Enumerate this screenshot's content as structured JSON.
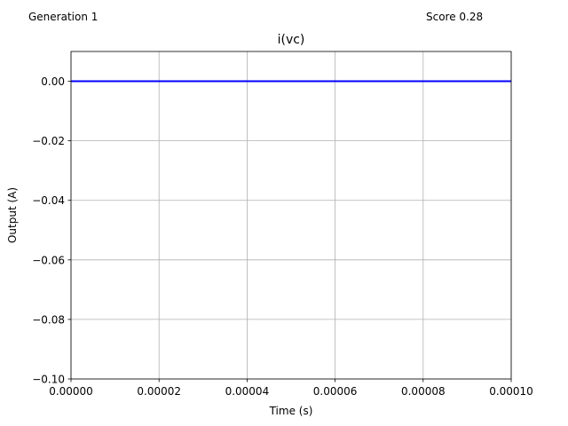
{
  "header": {
    "generation": "Generation 1",
    "score": "Score 0.28"
  },
  "chart_data": {
    "type": "line",
    "title": "i(vc)",
    "xlabel": "Time (s)",
    "ylabel": "Output (A)",
    "xlim": [
      0,
      0.0001
    ],
    "ylim": [
      -0.1,
      0.01
    ],
    "x_ticks": [
      0,
      2e-05,
      4e-05,
      6e-05,
      8e-05,
      0.0001
    ],
    "x_tick_labels": [
      "0.00000",
      "0.00002",
      "0.00004",
      "0.00006",
      "0.00008",
      "0.00010"
    ],
    "y_ticks": [
      0,
      -0.02,
      -0.04,
      -0.06,
      -0.08,
      -0.1
    ],
    "y_tick_labels": [
      "0.00",
      "−0.02",
      "−0.04",
      "−0.06",
      "−0.08",
      "−0.10"
    ],
    "grid": true,
    "series": [
      {
        "color": "#0000ff",
        "x": [
          0,
          0.0001
        ],
        "y": [
          0,
          0
        ]
      }
    ],
    "colors": {
      "line": "#0000ff",
      "grid": "#b0b0b0",
      "axes": "#000000"
    }
  }
}
